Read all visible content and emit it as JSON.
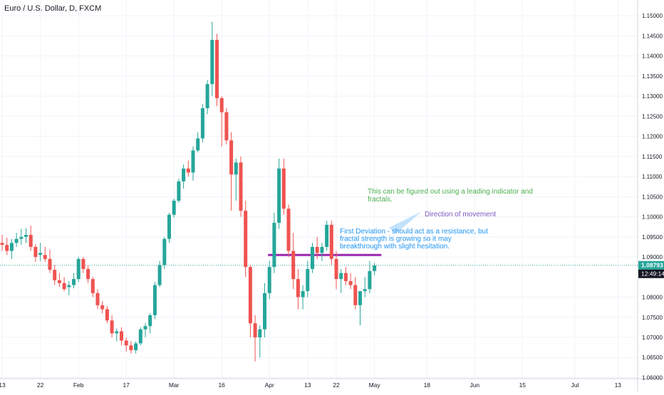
{
  "header": {
    "symbol_title": "Euro / U.S. Dollar, D, FXCM"
  },
  "price_axis": {
    "ticks": [
      "1.15000",
      "1.14500",
      "1.14000",
      "1.13500",
      "1.13000",
      "1.12500",
      "1.12000",
      "1.11500",
      "1.11000",
      "1.10500",
      "1.10000",
      "1.09500",
      "1.09000",
      "1.08000",
      "1.07500",
      "1.07000",
      "1.06500",
      "1.06000"
    ],
    "tick_values": [
      1.15,
      1.145,
      1.14,
      1.135,
      1.13,
      1.125,
      1.12,
      1.115,
      1.11,
      1.105,
      1.1,
      1.095,
      1.09,
      1.08,
      1.075,
      1.07,
      1.065,
      1.06
    ],
    "last_price_label": "1.08793",
    "last_price_value": 1.08793,
    "countdown_label": "12:49:14"
  },
  "time_axis": {
    "labels": [
      "13",
      "22",
      "Feb",
      "17",
      "Mar",
      "16",
      "Apr",
      "13",
      "22",
      "May",
      "18",
      "Jun",
      "15",
      "Jul",
      "13"
    ],
    "label_index": [
      0,
      8,
      16,
      26,
      36,
      46,
      56,
      64,
      70,
      78,
      89,
      99,
      109,
      120,
      129
    ]
  },
  "annotations": {
    "green_note": [
      "This can be figured out using a leading indicator and",
      "fractals."
    ],
    "purple_note": "Direction of movement",
    "blue_note": [
      "First Deviation - should act as a resistance, but",
      "fractal strength is growing so it may",
      "breakthrough with slight hesitation."
    ]
  },
  "colors": {
    "up": "#26a69a",
    "down": "#ef5350",
    "resistance": "#9c27b0",
    "last_price": "#26a69a",
    "countdown_bg": "#131722",
    "green_note": "#4caf50",
    "purple_note": "#7e57c2",
    "blue_note": "#2196f3",
    "grid": "#f0f3fa",
    "axis_text": "#131722"
  },
  "chart_data": {
    "type": "candlestick",
    "symbol": "Euro / U.S. Dollar",
    "interval": "D",
    "ylim": [
      1.0592,
      1.1518
    ],
    "resistance_level": {
      "price": 1.0905,
      "from_index": 56,
      "to_index": 79
    },
    "candles": [
      {
        "o": 1.0935,
        "h": 1.0955,
        "l": 1.0915,
        "c": 1.093
      },
      {
        "o": 1.093,
        "h": 1.0948,
        "l": 1.0905,
        "c": 1.0915
      },
      {
        "o": 1.0915,
        "h": 1.0945,
        "l": 1.0895,
        "c": 1.0935
      },
      {
        "o": 1.0935,
        "h": 1.096,
        "l": 1.0925,
        "c": 1.0945
      },
      {
        "o": 1.0945,
        "h": 1.097,
        "l": 1.093,
        "c": 1.095
      },
      {
        "o": 1.095,
        "h": 1.0972,
        "l": 1.0935,
        "c": 1.0955
      },
      {
        "o": 1.0955,
        "h": 1.0978,
        "l": 1.0915,
        "c": 1.0925
      },
      {
        "o": 1.0925,
        "h": 1.0932,
        "l": 1.0888,
        "c": 1.09
      },
      {
        "o": 1.0905,
        "h": 1.0935,
        "l": 1.089,
        "c": 1.091
      },
      {
        "o": 1.0905,
        "h": 1.0925,
        "l": 1.0888,
        "c": 1.0895
      },
      {
        "o": 1.0895,
        "h": 1.0918,
        "l": 1.086,
        "c": 1.0868
      },
      {
        "o": 1.0868,
        "h": 1.088,
        "l": 1.083,
        "c": 1.0842
      },
      {
        "o": 1.0842,
        "h": 1.086,
        "l": 1.0825,
        "c": 1.0835
      },
      {
        "o": 1.0835,
        "h": 1.085,
        "l": 1.0815,
        "c": 1.082
      },
      {
        "o": 1.0825,
        "h": 1.084,
        "l": 1.0805,
        "c": 1.083
      },
      {
        "o": 1.083,
        "h": 1.086,
        "l": 1.0822,
        "c": 1.0845
      },
      {
        "o": 1.0845,
        "h": 1.09,
        "l": 1.0838,
        "c": 1.0895
      },
      {
        "o": 1.0895,
        "h": 1.09,
        "l": 1.086,
        "c": 1.087
      },
      {
        "o": 1.087,
        "h": 1.088,
        "l": 1.0835,
        "c": 1.0845
      },
      {
        "o": 1.0845,
        "h": 1.085,
        "l": 1.08,
        "c": 1.081
      },
      {
        "o": 1.081,
        "h": 1.082,
        "l": 1.077,
        "c": 1.078
      },
      {
        "o": 1.078,
        "h": 1.079,
        "l": 1.076,
        "c": 1.077
      },
      {
        "o": 1.077,
        "h": 1.0778,
        "l": 1.0735,
        "c": 1.0742
      },
      {
        "o": 1.0742,
        "h": 1.0755,
        "l": 1.07,
        "c": 1.071
      },
      {
        "o": 1.071,
        "h": 1.0722,
        "l": 1.069,
        "c": 1.0715
      },
      {
        "o": 1.0715,
        "h": 1.0725,
        "l": 1.068,
        "c": 1.0692
      },
      {
        "o": 1.0692,
        "h": 1.07,
        "l": 1.0665,
        "c": 1.068
      },
      {
        "o": 1.068,
        "h": 1.069,
        "l": 1.066,
        "c": 1.0668
      },
      {
        "o": 1.0668,
        "h": 1.069,
        "l": 1.066,
        "c": 1.0685
      },
      {
        "o": 1.0685,
        "h": 1.0725,
        "l": 1.068,
        "c": 1.072
      },
      {
        "o": 1.072,
        "h": 1.0735,
        "l": 1.07,
        "c": 1.0728
      },
      {
        "o": 1.0728,
        "h": 1.076,
        "l": 1.071,
        "c": 1.0755
      },
      {
        "o": 1.0755,
        "h": 1.0838,
        "l": 1.0745,
        "c": 1.083
      },
      {
        "o": 1.083,
        "h": 1.089,
        "l": 1.0825,
        "c": 1.088
      },
      {
        "o": 1.088,
        "h": 1.095,
        "l": 1.087,
        "c": 1.0945
      },
      {
        "o": 1.0945,
        "h": 1.101,
        "l": 1.0935,
        "c": 1.1005
      },
      {
        "o": 1.1005,
        "h": 1.1045,
        "l": 1.0998,
        "c": 1.104
      },
      {
        "o": 1.104,
        "h": 1.1095,
        "l": 1.1035,
        "c": 1.1088
      },
      {
        "o": 1.1088,
        "h": 1.113,
        "l": 1.107,
        "c": 1.112
      },
      {
        "o": 1.112,
        "h": 1.114,
        "l": 1.11,
        "c": 1.111
      },
      {
        "o": 1.111,
        "h": 1.1175,
        "l": 1.109,
        "c": 1.1165
      },
      {
        "o": 1.1165,
        "h": 1.121,
        "l": 1.116,
        "c": 1.1195
      },
      {
        "o": 1.1195,
        "h": 1.128,
        "l": 1.1185,
        "c": 1.127
      },
      {
        "o": 1.127,
        "h": 1.134,
        "l": 1.1255,
        "c": 1.133
      },
      {
        "o": 1.133,
        "h": 1.1485,
        "l": 1.13,
        "c": 1.144
      },
      {
        "o": 1.144,
        "h": 1.1455,
        "l": 1.1275,
        "c": 1.1295
      },
      {
        "o": 1.1295,
        "h": 1.13,
        "l": 1.1175,
        "c": 1.126
      },
      {
        "o": 1.126,
        "h": 1.127,
        "l": 1.118,
        "c": 1.119
      },
      {
        "o": 1.119,
        "h": 1.121,
        "l": 1.1015,
        "c": 1.1105
      },
      {
        "o": 1.1105,
        "h": 1.1145,
        "l": 1.104,
        "c": 1.1135
      },
      {
        "o": 1.1135,
        "h": 1.115,
        "l": 1.1,
        "c": 1.1015
      },
      {
        "o": 1.1015,
        "h": 1.104,
        "l": 1.085,
        "c": 1.0875
      },
      {
        "o": 1.0875,
        "h": 1.088,
        "l": 1.07,
        "c": 1.0735
      },
      {
        "o": 1.0735,
        "h": 1.0755,
        "l": 1.064,
        "c": 1.07
      },
      {
        "o": 1.07,
        "h": 1.073,
        "l": 1.065,
        "c": 1.072
      },
      {
        "o": 1.072,
        "h": 1.0835,
        "l": 1.07,
        "c": 1.081
      },
      {
        "o": 1.081,
        "h": 1.089,
        "l": 1.0795,
        "c": 1.0875
      },
      {
        "o": 1.0875,
        "h": 1.101,
        "l": 1.086,
        "c": 1.0985
      },
      {
        "o": 1.0985,
        "h": 1.1145,
        "l": 1.097,
        "c": 1.112
      },
      {
        "o": 1.112,
        "h": 1.1145,
        "l": 1.1005,
        "c": 1.102
      },
      {
        "o": 1.102,
        "h": 1.103,
        "l": 1.09,
        "c": 1.0915
      },
      {
        "o": 1.0915,
        "h": 1.096,
        "l": 1.082,
        "c": 1.0845
      },
      {
        "o": 1.0845,
        "h": 1.087,
        "l": 1.077,
        "c": 1.08
      },
      {
        "o": 1.08,
        "h": 1.083,
        "l": 1.077,
        "c": 1.0815
      },
      {
        "o": 1.0815,
        "h": 1.089,
        "l": 1.08,
        "c": 1.087
      },
      {
        "o": 1.087,
        "h": 1.0935,
        "l": 1.086,
        "c": 1.0925
      },
      {
        "o": 1.0925,
        "h": 1.095,
        "l": 1.0895,
        "c": 1.091
      },
      {
        "o": 1.091,
        "h": 1.0935,
        "l": 1.089,
        "c": 1.0925
      },
      {
        "o": 1.0925,
        "h": 1.099,
        "l": 1.0915,
        "c": 1.098
      },
      {
        "o": 1.098,
        "h": 1.099,
        "l": 1.088,
        "c": 1.0895
      },
      {
        "o": 1.0895,
        "h": 1.0915,
        "l": 1.082,
        "c": 1.0845
      },
      {
        "o": 1.0845,
        "h": 1.087,
        "l": 1.081,
        "c": 1.086
      },
      {
        "o": 1.086,
        "h": 1.0875,
        "l": 1.083,
        "c": 1.084
      },
      {
        "o": 1.084,
        "h": 1.086,
        "l": 1.082,
        "c": 1.083
      },
      {
        "o": 1.083,
        "h": 1.085,
        "l": 1.077,
        "c": 1.078
      },
      {
        "o": 1.078,
        "h": 1.081,
        "l": 1.073,
        "c": 1.0815
      },
      {
        "o": 1.0815,
        "h": 1.085,
        "l": 1.08,
        "c": 1.082
      },
      {
        "o": 1.082,
        "h": 1.089,
        "l": 1.081,
        "c": 1.0865
      },
      {
        "o": 1.0865,
        "h": 1.0885,
        "l": 1.0855,
        "c": 1.0879
      }
    ]
  }
}
